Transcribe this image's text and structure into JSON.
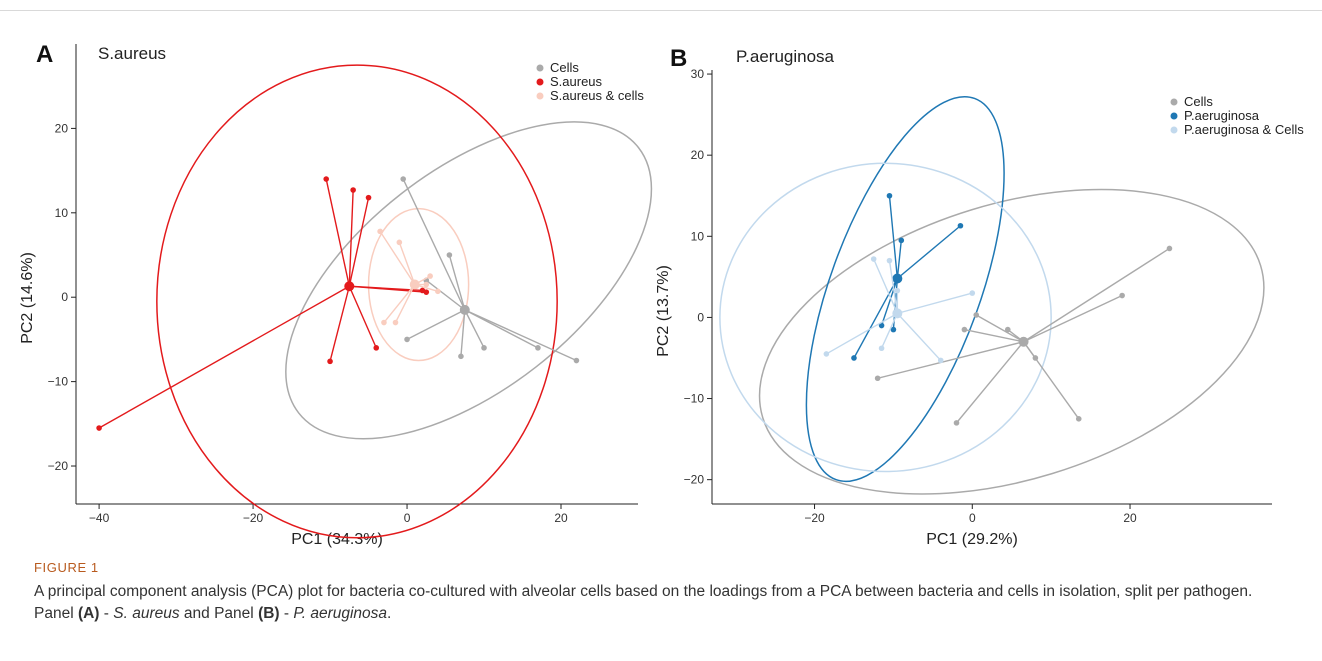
{
  "chart_data": [
    {
      "type": "scatter",
      "panel_label": "A",
      "title": "S.aureus",
      "xlabel": "PC1 (34.3%)",
      "ylabel": "PC2 (14.6%)",
      "xlim": [
        -43,
        30
      ],
      "ylim": [
        -24.5,
        30
      ],
      "xticks": [
        -40,
        -20,
        0,
        20
      ],
      "yticks": [
        -20,
        -10,
        0,
        10,
        20
      ],
      "legend_position": "top-right",
      "series": [
        {
          "name": "Cells",
          "color": "#aaaaaa",
          "centroid": [
            7.5,
            -1.5
          ],
          "points": [
            [
              -0.5,
              14
            ],
            [
              5.5,
              5
            ],
            [
              7,
              -7
            ],
            [
              10,
              -6
            ],
            [
              17,
              -6
            ],
            [
              22,
              -7.5
            ],
            [
              0,
              -5
            ],
            [
              2.5,
              2
            ],
            [
              7.5,
              -1.5
            ]
          ],
          "ellipse": {
            "center": [
              8,
              2
            ],
            "rx": 28,
            "ry": 13,
            "angle_deg": -38
          }
        },
        {
          "name": "S.aureus",
          "color": "#e31a1c",
          "centroid": [
            -7.5,
            1.3
          ],
          "points": [
            [
              -10.5,
              14
            ],
            [
              -7,
              12.7
            ],
            [
              -5,
              11.8
            ],
            [
              -40,
              -15.5
            ],
            [
              -10,
              -7.6
            ],
            [
              -4,
              -6
            ],
            [
              2,
              0.8
            ],
            [
              2.5,
              0.6
            ]
          ],
          "ellipse": {
            "center": [
              -6.5,
              -0.5
            ],
            "rx": 26,
            "ry": 28,
            "angle_deg": 0
          }
        },
        {
          "name": "S.aureus & cells",
          "color": "#f9cdbf",
          "centroid": [
            1,
            1.5
          ],
          "points": [
            [
              -3.5,
              7.8
            ],
            [
              -1,
              6.5
            ],
            [
              -1.5,
              -3
            ],
            [
              -3,
              -3
            ],
            [
              3,
              2.5
            ],
            [
              4,
              0.7
            ],
            [
              2.5,
              1.5
            ]
          ],
          "ellipse": {
            "center": [
              1.5,
              1.5
            ],
            "rx": 6.5,
            "ry": 9,
            "angle_deg": 0
          }
        }
      ]
    },
    {
      "type": "scatter",
      "panel_label": "B",
      "title": "P.aeruginosa",
      "xlabel": "PC1 (29.2%)",
      "ylabel": "PC2 (13.7%)",
      "xlim": [
        -33,
        38
      ],
      "ylim": [
        -23,
        30.5
      ],
      "xticks": [
        -20,
        0,
        20
      ],
      "yticks": [
        -20,
        -10,
        0,
        10,
        20,
        30
      ],
      "legend_position": "top-right",
      "series": [
        {
          "name": "Cells",
          "color": "#aaaaaa",
          "centroid": [
            6.5,
            -3
          ],
          "points": [
            [
              25,
              8.5
            ],
            [
              19,
              2.7
            ],
            [
              0.5,
              0.3
            ],
            [
              -1,
              -1.5
            ],
            [
              4.5,
              -1.5
            ],
            [
              8,
              -5
            ],
            [
              13.5,
              -12.5
            ],
            [
              -2,
              -13
            ],
            [
              -12,
              -7.5
            ]
          ],
          "ellipse": {
            "center": [
              5,
              -3
            ],
            "rx": 33,
            "ry": 17,
            "angle_deg": -17
          }
        },
        {
          "name": "P.aeruginosa",
          "color": "#1f78b4",
          "centroid": [
            -9.5,
            4.8
          ],
          "points": [
            [
              -10.5,
              15
            ],
            [
              -9,
              9.5
            ],
            [
              -1.5,
              11.3
            ],
            [
              -10,
              -1.5
            ],
            [
              -11.5,
              -1
            ],
            [
              -15,
              -5
            ]
          ],
          "ellipse": {
            "center": [
              -8.5,
              3.5
            ],
            "rx": 9.5,
            "ry": 25,
            "angle_deg": 20
          }
        },
        {
          "name": "P.aeruginosa & Cells",
          "color": "#c2d9ed",
          "centroid": [
            -9.5,
            0.5
          ],
          "points": [
            [
              -12.5,
              7.2
            ],
            [
              -10.5,
              7
            ],
            [
              -9.5,
              3.3
            ],
            [
              0,
              3
            ],
            [
              -18.5,
              -4.5
            ],
            [
              -11.5,
              -3.8
            ],
            [
              -4,
              -5.3
            ]
          ],
          "ellipse": {
            "center": [
              -11,
              0
            ],
            "rx": 21,
            "ry": 19,
            "angle_deg": 0
          }
        }
      ]
    }
  ],
  "caption": {
    "label": "FIGURE 1",
    "text_main": "A principal component analysis (PCA) plot for bacteria co-cultured with alveolar cells based on the loadings from a PCA between bacteria and cells in isolation, split per pathogen. Panel ",
    "panel_a_ref": "(A)",
    "dash_a": " - ",
    "species_a": "S. aureus",
    "and_panel": " and Panel ",
    "panel_b_ref": "(B)",
    "dash_b": " - ",
    "species_b": "P. aeruginosa",
    "end": "."
  }
}
